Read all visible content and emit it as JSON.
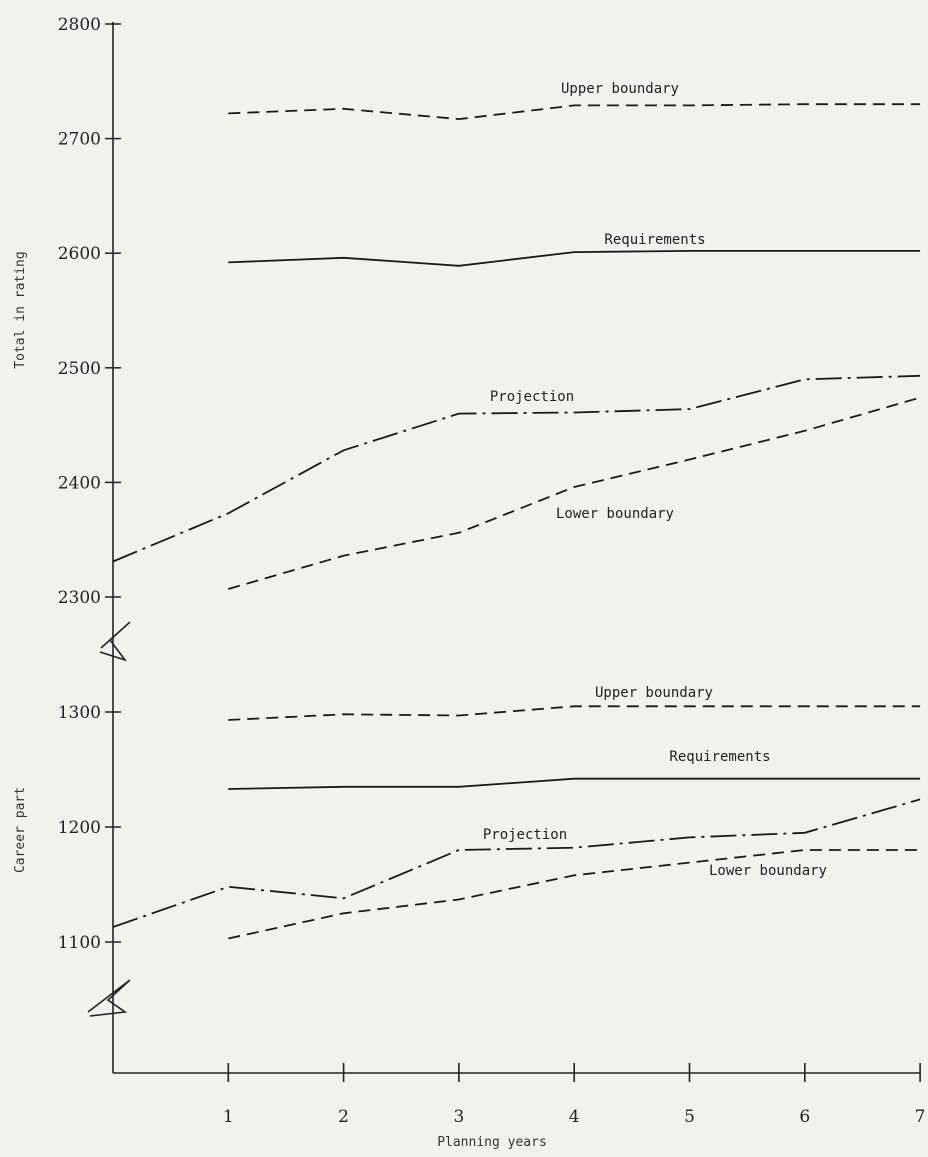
{
  "chart_data": [
    {
      "panel": "upper",
      "type": "line",
      "ylabel": "Total in rating",
      "ylim": [
        2300,
        2800
      ],
      "yticks": [
        "2300",
        "2400",
        "2500",
        "2600",
        "2700",
        "2800"
      ],
      "series": [
        {
          "name": "Upper boundary",
          "style": "dashed",
          "x": [
            1,
            2,
            3,
            4,
            5,
            6,
            7
          ],
          "values": [
            2722,
            2726,
            2717,
            2729,
            2729,
            2730,
            2730
          ]
        },
        {
          "name": "Requirements",
          "style": "solid",
          "x": [
            1,
            2,
            3,
            4,
            5,
            6,
            7
          ],
          "values": [
            2592,
            2596,
            2589,
            2601,
            2602,
            2602,
            2602
          ]
        },
        {
          "name": "Projection",
          "style": "dash-dot",
          "x": [
            0,
            1,
            2,
            3,
            4,
            5,
            6,
            7
          ],
          "values": [
            2331,
            2373,
            2428,
            2460,
            2461,
            2464,
            2490,
            2493
          ]
        },
        {
          "name": "Lower boundary",
          "style": "dashed",
          "x": [
            1,
            2,
            3,
            4,
            5,
            6,
            7
          ],
          "values": [
            2307,
            2336,
            2356,
            2396,
            2420,
            2445,
            2474
          ]
        }
      ]
    },
    {
      "panel": "lower",
      "type": "line",
      "ylabel": "Career part",
      "ylim": [
        1100,
        1300
      ],
      "yticks": [
        "1100",
        "1200",
        "1300"
      ],
      "series": [
        {
          "name": "Upper boundary",
          "style": "dashed",
          "x": [
            1,
            2,
            3,
            4,
            5,
            6,
            7
          ],
          "values": [
            1293,
            1298,
            1297,
            1305,
            1305,
            1305,
            1305
          ]
        },
        {
          "name": "Requirements",
          "style": "solid",
          "x": [
            1,
            2,
            3,
            4,
            5,
            6,
            7
          ],
          "values": [
            1233,
            1235,
            1235,
            1242,
            1242,
            1242,
            1242
          ]
        },
        {
          "name": "Projection",
          "style": "dash-dot",
          "x": [
            0,
            1,
            2,
            3,
            4,
            5,
            6,
            7
          ],
          "values": [
            1113,
            1148,
            1138,
            1180,
            1182,
            1191,
            1195,
            1224
          ]
        },
        {
          "name": "Lower boundary",
          "style": "dashed",
          "x": [
            1,
            2,
            3,
            4,
            5,
            6,
            7
          ],
          "values": [
            1103,
            1125,
            1137,
            1158,
            1169,
            1180,
            1180
          ]
        }
      ]
    }
  ],
  "x_axis": {
    "title": "Planning years",
    "categories": [
      "1",
      "2",
      "3",
      "4",
      "5",
      "6",
      "7"
    ]
  }
}
